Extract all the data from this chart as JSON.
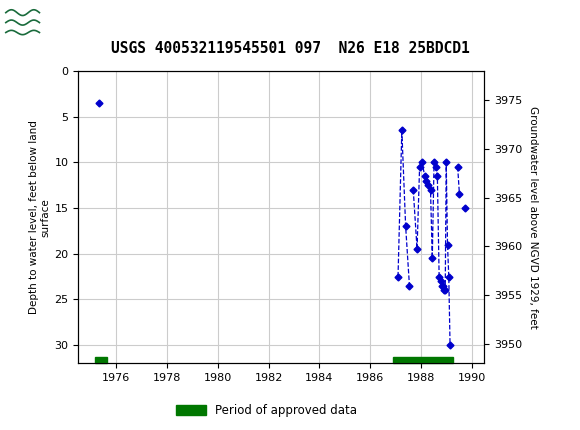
{
  "title": "USGS 400532119545501 097  N26 E18 25BDCD1",
  "ylabel_left": "Depth to water level, feet below land\nsurface",
  "ylabel_right": "Groundwater level above NGVD 1929, feet",
  "xlim": [
    1974.5,
    1990.5
  ],
  "ylim_left": [
    32,
    0
  ],
  "ylim_right": [
    3948,
    3978
  ],
  "xticks": [
    1976,
    1978,
    1980,
    1982,
    1984,
    1986,
    1988,
    1990
  ],
  "yticks_left": [
    0,
    5,
    10,
    15,
    20,
    25,
    30
  ],
  "yticks_right": [
    3950,
    3955,
    3960,
    3965,
    3970,
    3975
  ],
  "grid_color": "#cccccc",
  "bg_color": "#ffffff",
  "header_color": "#1a6b3c",
  "data_color": "#0000cc",
  "segments": [
    [
      [
        1975.3,
        3.5
      ]
    ],
    [
      [
        1987.1,
        22.5
      ],
      [
        1987.25,
        6.5
      ],
      [
        1987.4,
        17.0
      ],
      [
        1987.55,
        23.5
      ]
    ],
    [
      [
        1987.7,
        13.0
      ],
      [
        1987.85,
        19.5
      ],
      [
        1987.95,
        10.5
      ],
      [
        1988.05,
        10.0
      ],
      [
        1988.15,
        11.5
      ],
      [
        1988.22,
        12.0
      ],
      [
        1988.3,
        12.5
      ],
      [
        1988.38,
        13.0
      ],
      [
        1988.45,
        20.5
      ],
      [
        1988.52,
        10.0
      ],
      [
        1988.58,
        10.5
      ],
      [
        1988.65,
        11.5
      ],
      [
        1988.72,
        22.5
      ],
      [
        1988.78,
        23.0
      ],
      [
        1988.84,
        23.5
      ],
      [
        1988.88,
        23.5
      ],
      [
        1988.92,
        24.0
      ],
      [
        1988.96,
        24.0
      ],
      [
        1989.0,
        10.0
      ],
      [
        1989.05,
        19.0
      ],
      [
        1989.1,
        22.5
      ],
      [
        1989.15,
        30.0
      ]
    ],
    [
      [
        1989.45,
        10.5
      ],
      [
        1989.52,
        13.5
      ]
    ],
    [
      [
        1989.75,
        15.0
      ]
    ]
  ],
  "period_bars": [
    {
      "x_start": 1975.15,
      "x_end": 1975.65
    },
    {
      "x_start": 1986.9,
      "x_end": 1989.25
    }
  ],
  "period_bar_y": 31.3,
  "period_bar_height": 0.7,
  "legend_label": "Period of approved data",
  "legend_color": "#007700"
}
